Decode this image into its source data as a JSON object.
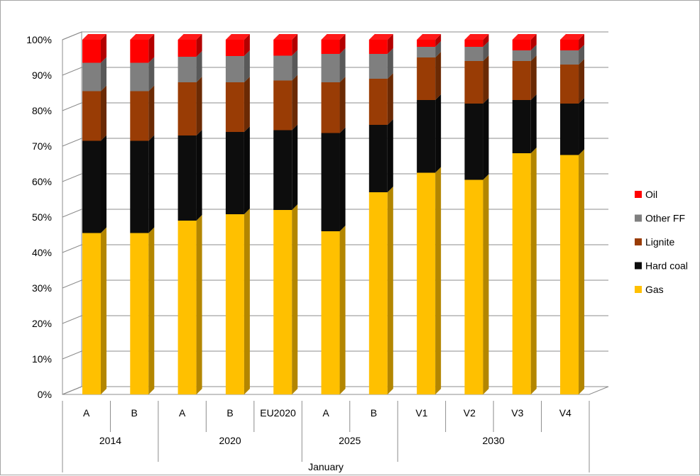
{
  "chart_data": {
    "type": "bar",
    "stacked": "percent",
    "three_d": true,
    "categories": [
      "A",
      "B",
      "A",
      "B",
      "EU2020",
      "A",
      "B",
      "V1",
      "V2",
      "V3",
      "V4"
    ],
    "groups": [
      {
        "label": "2014",
        "span": 2
      },
      {
        "label": "2020",
        "span": 3
      },
      {
        "label": "2025",
        "span": 2
      },
      {
        "label": "2030",
        "span": 4
      }
    ],
    "super_group": "January",
    "yticks": [
      "0%",
      "10%",
      "20%",
      "30%",
      "40%",
      "50%",
      "60%",
      "70%",
      "80%",
      "90%",
      "100%"
    ],
    "ylim": [
      0,
      100
    ],
    "grid": true,
    "legend_position": "right",
    "series": [
      {
        "name": "Gas",
        "color": "#ffc000",
        "values": [
          45.5,
          45.5,
          49,
          50.8,
          52,
          46,
          57,
          62.5,
          60.5,
          68,
          67.5
        ]
      },
      {
        "name": "Hard coal",
        "color": "#0d0d0d",
        "values": [
          26,
          26,
          24,
          23.2,
          22.5,
          27.7,
          19,
          20.5,
          21.5,
          15,
          14.5
        ]
      },
      {
        "name": "Lignite",
        "color": "#993c05",
        "values": [
          14,
          14,
          15,
          14,
          14,
          14.3,
          13,
          12,
          12,
          11,
          11
        ]
      },
      {
        "name": "Other FF",
        "color": "#7f7f7f",
        "values": [
          8,
          8,
          7.2,
          7.4,
          7,
          8,
          7,
          3,
          4,
          3,
          4
        ]
      },
      {
        "name": "Oil",
        "color": "#ff0000",
        "values": [
          6.5,
          6.5,
          4.8,
          4.6,
          4.5,
          4,
          4,
          2,
          2,
          3,
          3
        ]
      }
    ]
  }
}
